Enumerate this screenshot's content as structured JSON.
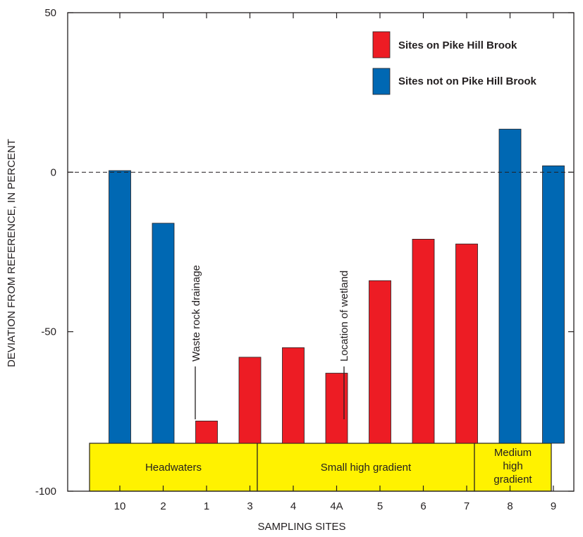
{
  "chart_data": {
    "type": "bar",
    "xlabel": "SAMPLING SITES",
    "ylabel": "DEVIATION FROM REFERENCE, IN PERCENT",
    "ylim": [
      -100,
      50
    ],
    "yticks": [
      50,
      0,
      -50,
      -100
    ],
    "reference_line": 0,
    "grid": false,
    "categories": [
      "10",
      "2",
      "1",
      "3",
      "4",
      "4A",
      "5",
      "6",
      "7",
      "8",
      "9"
    ],
    "values": [
      0.5,
      -16,
      -78,
      -58,
      -55,
      -63,
      -34,
      -21,
      -22.5,
      13.5,
      2
    ],
    "groups": [
      "not",
      "not",
      "on",
      "on",
      "on",
      "on",
      "on",
      "on",
      "on",
      "not",
      "not"
    ],
    "legend_position": "top-right",
    "series": [
      {
        "key": "on",
        "name": "Sites on Pike Hill Brook",
        "color": "#ed1c24"
      },
      {
        "key": "not",
        "name": "Sites not on Pike Hill Brook",
        "color": "#0068b3"
      }
    ],
    "zones": [
      {
        "label": "Headwaters",
        "from": "10",
        "to": "3"
      },
      {
        "label": "Small high gradient",
        "from": "4",
        "to": "7"
      },
      {
        "label": "Medium high gradient",
        "from": "8",
        "to": "9"
      }
    ],
    "zone_color": "#fff200",
    "annotations": [
      {
        "text": "Waste rock drainage",
        "near": "1"
      },
      {
        "text": "Location of wetland",
        "near": "between 4A and 5"
      }
    ]
  }
}
